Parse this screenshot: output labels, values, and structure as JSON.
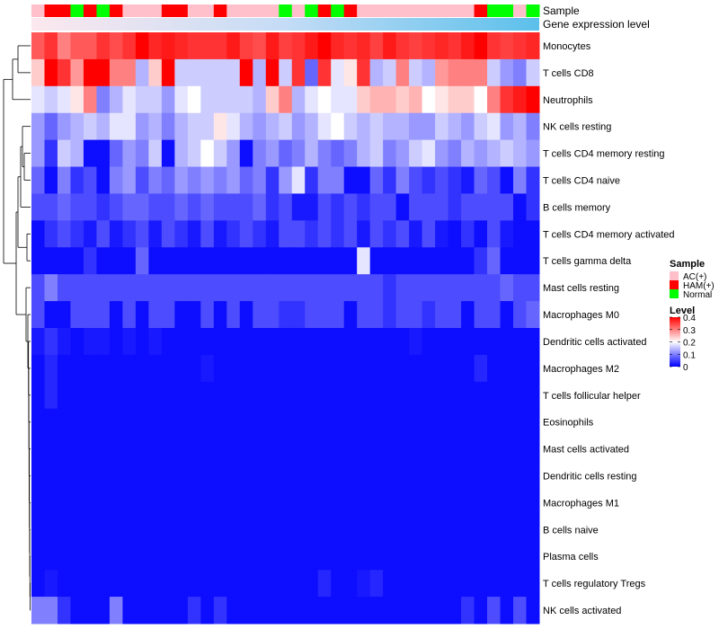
{
  "chart_data": {
    "type": "heatmap",
    "annotation_tracks": [
      "Sample",
      "Gene expression level"
    ],
    "rows": [
      "Monocytes",
      "T cells CD8",
      "Neutrophils",
      "NK cells resting",
      "T cells CD4 memory resting",
      "T cells CD4 naive",
      "B cells memory",
      "T cells CD4 memory activated",
      "T cells gamma delta",
      "Mast cells resting",
      "Macrophages M0",
      "Dendritic cells activated",
      "Macrophages M2",
      "T cells follicular helper",
      "Eosinophils",
      "Mast cells activated",
      "Dendritic cells resting",
      "Macrophages M1",
      "B cells naive",
      "Plasma cells",
      "T cells regulatory  Tregs",
      "NK cells activated"
    ],
    "sample_groups": [
      "AC",
      "HAM",
      "HAM",
      "Normal",
      "HAM",
      "Normal",
      "HAM",
      "AC",
      "AC",
      "AC",
      "HAM",
      "HAM",
      "AC",
      "AC",
      "HAM",
      "AC",
      "AC",
      "AC",
      "AC",
      "Normal",
      "AC",
      "Normal",
      "HAM",
      "Normal",
      "HAM",
      "AC",
      "AC",
      "AC",
      "AC",
      "AC",
      "AC",
      "AC",
      "AC",
      "AC",
      "HAM",
      "Normal",
      "Normal",
      "AC",
      "Normal"
    ],
    "values": [
      [
        0.33,
        0.36,
        0.3,
        0.33,
        0.33,
        0.36,
        0.34,
        0.36,
        0.4,
        0.37,
        0.38,
        0.37,
        0.36,
        0.36,
        0.36,
        0.38,
        0.35,
        0.34,
        0.38,
        0.35,
        0.36,
        0.38,
        0.4,
        0.37,
        0.36,
        0.37,
        0.35,
        0.38,
        0.36,
        0.35,
        0.36,
        0.37,
        0.36,
        0.38,
        0.4,
        0.36,
        0.35,
        0.36,
        0.37
      ],
      [
        0.24,
        0.4,
        0.36,
        0.28,
        0.4,
        0.4,
        0.3,
        0.3,
        0.14,
        0.24,
        0.4,
        0.16,
        0.16,
        0.16,
        0.16,
        0.16,
        0.4,
        0.14,
        0.4,
        0.16,
        0.36,
        0.08,
        0.36,
        0.18,
        0.22,
        0.36,
        0.14,
        0.16,
        0.3,
        0.16,
        0.14,
        0.28,
        0.3,
        0.3,
        0.3,
        0.16,
        0.12,
        0.1,
        0.16
      ],
      [
        0.18,
        0.16,
        0.18,
        0.22,
        0.3,
        0.1,
        0.14,
        0.18,
        0.16,
        0.16,
        0.12,
        0.18,
        0.2,
        0.16,
        0.16,
        0.16,
        0.16,
        0.14,
        0.24,
        0.3,
        0.14,
        0.18,
        0.2,
        0.18,
        0.18,
        0.24,
        0.26,
        0.26,
        0.24,
        0.26,
        0.2,
        0.22,
        0.24,
        0.24,
        0.2,
        0.3,
        0.36,
        0.38,
        0.4
      ],
      [
        0.12,
        0.08,
        0.12,
        0.14,
        0.16,
        0.14,
        0.18,
        0.18,
        0.12,
        0.14,
        0.1,
        0.14,
        0.16,
        0.16,
        0.22,
        0.18,
        0.14,
        0.12,
        0.14,
        0.16,
        0.12,
        0.14,
        0.18,
        0.2,
        0.16,
        0.14,
        0.16,
        0.14,
        0.14,
        0.12,
        0.12,
        0.16,
        0.14,
        0.12,
        0.16,
        0.18,
        0.12,
        0.14,
        0.1
      ],
      [
        0.12,
        0.04,
        0.16,
        0.14,
        0.01,
        0.01,
        0.08,
        0.12,
        0.1,
        0.16,
        0.01,
        0.14,
        0.16,
        0.2,
        0.16,
        0.12,
        0.01,
        0.1,
        0.12,
        0.08,
        0.1,
        0.14,
        0.1,
        0.08,
        0.1,
        0.14,
        0.16,
        0.1,
        0.12,
        0.16,
        0.18,
        0.12,
        0.1,
        0.14,
        0.12,
        0.14,
        0.16,
        0.14,
        0.12
      ],
      [
        0.08,
        0.01,
        0.1,
        0.04,
        0.06,
        0.01,
        0.1,
        0.12,
        0.06,
        0.1,
        0.08,
        0.12,
        0.1,
        0.12,
        0.1,
        0.12,
        0.08,
        0.1,
        0.04,
        0.12,
        0.18,
        0.04,
        0.1,
        0.1,
        0.01,
        0.01,
        0.08,
        0.04,
        0.1,
        0.06,
        0.04,
        0.06,
        0.04,
        0.02,
        0.08,
        0.06,
        0.01,
        0.1,
        0.04
      ],
      [
        0.06,
        0.06,
        0.08,
        0.06,
        0.06,
        0.04,
        0.06,
        0.08,
        0.08,
        0.06,
        0.06,
        0.08,
        0.06,
        0.08,
        0.06,
        0.06,
        0.06,
        0.08,
        0.04,
        0.06,
        0.02,
        0.02,
        0.06,
        0.04,
        0.06,
        0.04,
        0.06,
        0.06,
        0.01,
        0.06,
        0.06,
        0.06,
        0.04,
        0.06,
        0.06,
        0.06,
        0.06,
        0.01,
        0.04
      ],
      [
        0.01,
        0.04,
        0.06,
        0.04,
        0.02,
        0.06,
        0.02,
        0.04,
        0.06,
        0.02,
        0.06,
        0.04,
        0.02,
        0.06,
        0.02,
        0.04,
        0.06,
        0.04,
        0.02,
        0.06,
        0.06,
        0.04,
        0.06,
        0.04,
        0.06,
        0.02,
        0.06,
        0.04,
        0.06,
        0.02,
        0.06,
        0.02,
        0.01,
        0.04,
        0.01,
        0.06,
        0.02,
        0.01,
        0.01
      ],
      [
        0.01,
        0.01,
        0.01,
        0.01,
        0.04,
        0.01,
        0.01,
        0.01,
        0.08,
        0.01,
        0.01,
        0.01,
        0.01,
        0.01,
        0.01,
        0.01,
        0.01,
        0.01,
        0.01,
        0.01,
        0.01,
        0.01,
        0.01,
        0.01,
        0.01,
        0.18,
        0.01,
        0.01,
        0.01,
        0.01,
        0.01,
        0.01,
        0.01,
        0.01,
        0.04,
        0.08,
        0.01,
        0.01,
        0.01
      ],
      [
        0.06,
        0.1,
        0.06,
        0.06,
        0.06,
        0.06,
        0.06,
        0.06,
        0.06,
        0.06,
        0.06,
        0.06,
        0.06,
        0.06,
        0.06,
        0.06,
        0.06,
        0.06,
        0.06,
        0.06,
        0.06,
        0.06,
        0.06,
        0.06,
        0.06,
        0.06,
        0.06,
        0.04,
        0.06,
        0.06,
        0.06,
        0.06,
        0.06,
        0.06,
        0.06,
        0.06,
        0.08,
        0.06,
        0.06
      ],
      [
        0.06,
        0.01,
        0.01,
        0.06,
        0.06,
        0.06,
        0.01,
        0.06,
        0.01,
        0.06,
        0.06,
        0.01,
        0.01,
        0.06,
        0.01,
        0.06,
        0.01,
        0.06,
        0.06,
        0.04,
        0.04,
        0.06,
        0.06,
        0.06,
        0.01,
        0.06,
        0.06,
        0.04,
        0.06,
        0.06,
        0.04,
        0.06,
        0.06,
        0.01,
        0.06,
        0.06,
        0.01,
        0.06,
        0.08
      ],
      [
        0.02,
        0.04,
        0.02,
        0.01,
        0.02,
        0.02,
        0.01,
        0.02,
        0.01,
        0.02,
        0.01,
        0.01,
        0.01,
        0.01,
        0.01,
        0.01,
        0.01,
        0.01,
        0.01,
        0.01,
        0.01,
        0.01,
        0.01,
        0.01,
        0.01,
        0.01,
        0.01,
        0.01,
        0.01,
        0.02,
        0.01,
        0.01,
        0.01,
        0.01,
        0.01,
        0.01,
        0.01,
        0.01,
        0.01
      ],
      [
        0.01,
        0.03,
        0.01,
        0.01,
        0.01,
        0.01,
        0.01,
        0.01,
        0.01,
        0.01,
        0.01,
        0.01,
        0.01,
        0.02,
        0.01,
        0.01,
        0.01,
        0.01,
        0.01,
        0.01,
        0.01,
        0.01,
        0.01,
        0.01,
        0.01,
        0.01,
        0.01,
        0.01,
        0.01,
        0.01,
        0.01,
        0.01,
        0.01,
        0.01,
        0.03,
        0.01,
        0.01,
        0.01,
        0.01
      ],
      [
        0.01,
        0.03,
        0.01,
        0.01,
        0.01,
        0.01,
        0.01,
        0.01,
        0.01,
        0.01,
        0.01,
        0.01,
        0.01,
        0.01,
        0.01,
        0.01,
        0.01,
        0.01,
        0.01,
        0.01,
        0.01,
        0.01,
        0.01,
        0.01,
        0.01,
        0.01,
        0.01,
        0.01,
        0.01,
        0.01,
        0.01,
        0.01,
        0.01,
        0.01,
        0.01,
        0.01,
        0.01,
        0.01,
        0.01
      ],
      [
        0.01,
        0.01,
        0.01,
        0.01,
        0.01,
        0.01,
        0.01,
        0.01,
        0.01,
        0.01,
        0.01,
        0.01,
        0.01,
        0.01,
        0.01,
        0.01,
        0.01,
        0.01,
        0.01,
        0.01,
        0.01,
        0.01,
        0.01,
        0.01,
        0.01,
        0.01,
        0.01,
        0.01,
        0.01,
        0.01,
        0.01,
        0.01,
        0.01,
        0.01,
        0.01,
        0.01,
        0.01,
        0.01,
        0.01
      ],
      [
        0.01,
        0.01,
        0.01,
        0.01,
        0.01,
        0.01,
        0.01,
        0.01,
        0.01,
        0.01,
        0.01,
        0.01,
        0.01,
        0.01,
        0.01,
        0.01,
        0.01,
        0.01,
        0.01,
        0.01,
        0.01,
        0.01,
        0.01,
        0.01,
        0.01,
        0.01,
        0.01,
        0.01,
        0.01,
        0.01,
        0.01,
        0.01,
        0.01,
        0.01,
        0.01,
        0.01,
        0.01,
        0.01,
        0.01
      ],
      [
        0.01,
        0.01,
        0.01,
        0.01,
        0.01,
        0.01,
        0.01,
        0.01,
        0.01,
        0.01,
        0.01,
        0.01,
        0.01,
        0.01,
        0.01,
        0.01,
        0.01,
        0.01,
        0.01,
        0.01,
        0.01,
        0.01,
        0.01,
        0.01,
        0.01,
        0.01,
        0.01,
        0.01,
        0.01,
        0.01,
        0.01,
        0.01,
        0.01,
        0.01,
        0.01,
        0.01,
        0.01,
        0.01,
        0.01
      ],
      [
        0.01,
        0.01,
        0.01,
        0.01,
        0.01,
        0.01,
        0.01,
        0.01,
        0.01,
        0.01,
        0.01,
        0.01,
        0.01,
        0.01,
        0.01,
        0.01,
        0.01,
        0.01,
        0.01,
        0.01,
        0.01,
        0.01,
        0.01,
        0.01,
        0.01,
        0.01,
        0.01,
        0.01,
        0.01,
        0.01,
        0.01,
        0.01,
        0.01,
        0.01,
        0.01,
        0.01,
        0.01,
        0.01,
        0.01
      ],
      [
        0.01,
        0.01,
        0.01,
        0.01,
        0.01,
        0.01,
        0.01,
        0.01,
        0.01,
        0.01,
        0.01,
        0.01,
        0.01,
        0.01,
        0.01,
        0.01,
        0.01,
        0.01,
        0.01,
        0.01,
        0.01,
        0.01,
        0.01,
        0.01,
        0.01,
        0.01,
        0.01,
        0.01,
        0.01,
        0.01,
        0.01,
        0.01,
        0.01,
        0.01,
        0.01,
        0.01,
        0.01,
        0.01,
        0.01
      ],
      [
        0.01,
        0.01,
        0.01,
        0.01,
        0.01,
        0.01,
        0.01,
        0.01,
        0.01,
        0.01,
        0.01,
        0.01,
        0.01,
        0.01,
        0.01,
        0.01,
        0.01,
        0.01,
        0.01,
        0.01,
        0.01,
        0.01,
        0.01,
        0.01,
        0.01,
        0.01,
        0.01,
        0.01,
        0.01,
        0.01,
        0.01,
        0.01,
        0.01,
        0.01,
        0.01,
        0.01,
        0.01,
        0.01,
        0.01
      ],
      [
        0.01,
        0.02,
        0.01,
        0.01,
        0.01,
        0.01,
        0.01,
        0.01,
        0.01,
        0.01,
        0.01,
        0.01,
        0.01,
        0.01,
        0.01,
        0.01,
        0.01,
        0.01,
        0.01,
        0.01,
        0.01,
        0.01,
        0.03,
        0.01,
        0.01,
        0.02,
        0.03,
        0.01,
        0.01,
        0.01,
        0.01,
        0.01,
        0.01,
        0.01,
        0.01,
        0.01,
        0.01,
        0.01,
        0.01
      ],
      [
        0.1,
        0.1,
        0.04,
        0.01,
        0.01,
        0.01,
        0.1,
        0.01,
        0.01,
        0.01,
        0.01,
        0.01,
        0.04,
        0.01,
        0.04,
        0.01,
        0.01,
        0.01,
        0.01,
        0.01,
        0.01,
        0.01,
        0.01,
        0.01,
        0.01,
        0.01,
        0.01,
        0.01,
        0.01,
        0.01,
        0.01,
        0.01,
        0.01,
        0.04,
        0.01,
        0.06,
        0.01,
        0.06,
        0.01
      ]
    ],
    "gene_expression_gradient": [
      "#fce8ee",
      "#c4dcf6",
      "#5bc0eb"
    ],
    "legend": {
      "sample_title": "Sample",
      "sample_entries": [
        {
          "label": "AC(+)",
          "color": "#ffc0cb"
        },
        {
          "label": "HAM(+)",
          "color": "#ff0000"
        },
        {
          "label": "Normal",
          "color": "#00ff00"
        }
      ],
      "level_title": "Level",
      "level_ticks": [
        "0.4",
        "0.3",
        "0.2",
        "0.1",
        "0"
      ],
      "level_range": [
        0,
        0.4
      ]
    },
    "colors": {
      "low": "#0000ff",
      "mid": "#ffffff",
      "high": "#ff0000"
    }
  }
}
